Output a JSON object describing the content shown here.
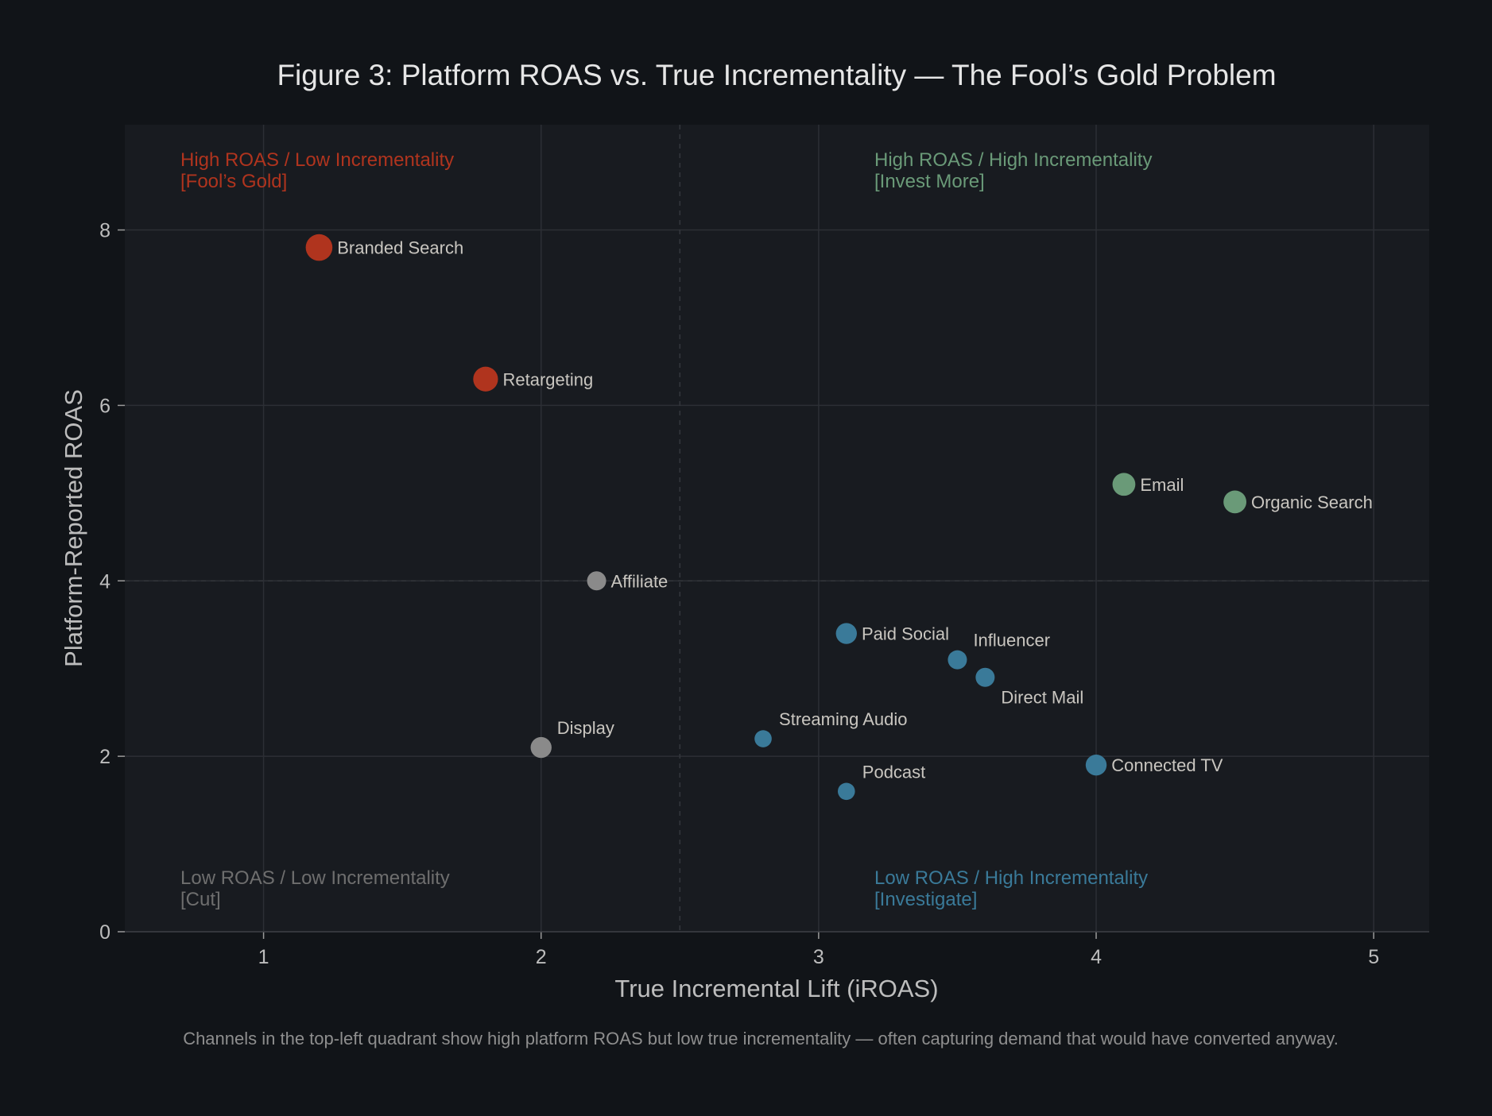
{
  "chart_data": {
    "type": "scatter",
    "title": "Figure 3: Platform ROAS vs. True Incrementality — The Fool’s Gold Problem",
    "xlabel": "True Incremental Lift (iROAS)",
    "ylabel": "Platform-Reported ROAS",
    "xlim": [
      0.5,
      5.2
    ],
    "ylim": [
      0,
      9.2
    ],
    "xticks": [
      1,
      2,
      3,
      4,
      5
    ],
    "yticks": [
      0,
      2,
      4,
      6,
      8
    ],
    "grid": true,
    "quadrant_dividers": {
      "x": 2.5,
      "y": 4
    },
    "colors": {
      "red": "#b0341e",
      "green": "#6a9a78",
      "blue": "#3a7a99",
      "grey": "#8a8a8a"
    },
    "quadrants": [
      {
        "line1": "High ROAS / Low Incrementality",
        "line2": "[Fool’s Gold]",
        "color": "#b0341e",
        "pos": "top-left"
      },
      {
        "line1": "High ROAS / High Incrementality",
        "line2": "[Invest More]",
        "color": "#6a9a78",
        "pos": "top-right"
      },
      {
        "line1": "Low ROAS / Low Incrementality",
        "line2": "[Cut]",
        "color": "#6e6e6e",
        "pos": "bottom-left"
      },
      {
        "line1": "Low ROAS / High Incrementality",
        "line2": "[Investigate]",
        "color": "#3a7a99",
        "pos": "bottom-right"
      }
    ],
    "points": [
      {
        "label": "Branded Search",
        "x": 1.2,
        "y": 7.8,
        "group": "red",
        "size": 14,
        "label_pos": "right"
      },
      {
        "label": "Retargeting",
        "x": 1.8,
        "y": 6.3,
        "group": "red",
        "size": 13,
        "label_pos": "right"
      },
      {
        "label": "Affiliate",
        "x": 2.2,
        "y": 4.0,
        "group": "grey",
        "size": 10,
        "label_pos": "right"
      },
      {
        "label": "Display",
        "x": 2.0,
        "y": 2.1,
        "group": "grey",
        "size": 11,
        "label_pos": "above-right"
      },
      {
        "label": "Paid Social",
        "x": 3.1,
        "y": 3.4,
        "group": "blue",
        "size": 11,
        "label_pos": "right"
      },
      {
        "label": "Influencer",
        "x": 3.5,
        "y": 3.1,
        "group": "blue",
        "size": 10,
        "label_pos": "above-right"
      },
      {
        "label": "Direct Mail",
        "x": 3.6,
        "y": 2.9,
        "group": "blue",
        "size": 10,
        "label_pos": "below-right"
      },
      {
        "label": "Streaming Audio",
        "x": 2.8,
        "y": 2.2,
        "group": "blue",
        "size": 9,
        "label_pos": "above-right"
      },
      {
        "label": "Podcast",
        "x": 3.1,
        "y": 1.6,
        "group": "blue",
        "size": 9,
        "label_pos": "above-right"
      },
      {
        "label": "Connected TV",
        "x": 4.0,
        "y": 1.9,
        "group": "blue",
        "size": 11,
        "label_pos": "right"
      },
      {
        "label": "Email",
        "x": 4.1,
        "y": 5.1,
        "group": "green",
        "size": 12,
        "label_pos": "right"
      },
      {
        "label": "Organic Search",
        "x": 4.5,
        "y": 4.9,
        "group": "green",
        "size": 12,
        "label_pos": "right"
      }
    ],
    "caption": "Channels in the top-left quadrant show high platform ROAS but low true incrementality — often capturing demand that would have converted anyway."
  }
}
